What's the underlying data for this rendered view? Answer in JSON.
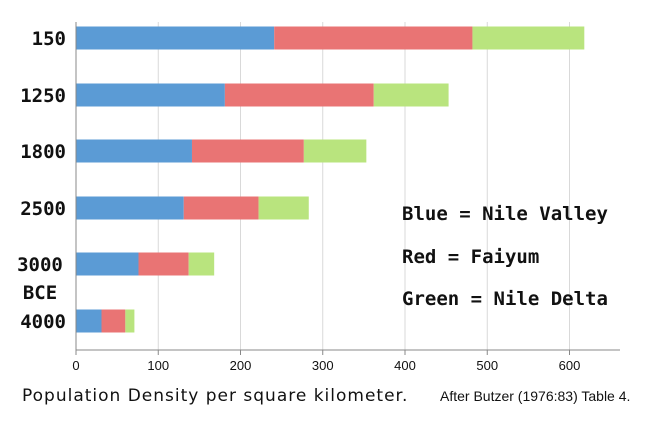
{
  "chart_data": {
    "type": "bar",
    "orientation": "horizontal",
    "stacked": true,
    "categories": [
      "150",
      "1250",
      "1800",
      "2500",
      "3000 BCE",
      "4000"
    ],
    "series": [
      {
        "name": "Nile Valley",
        "color": "#5b9bd5",
        "values": [
          241,
          181,
          141,
          131,
          76,
          31
        ]
      },
      {
        "name": "Faiyum",
        "color": "#e97474",
        "values": [
          241,
          181,
          136,
          91,
          61,
          29
        ]
      },
      {
        "name": "Nile Delta",
        "color": "#b9e47e",
        "values": [
          136,
          91,
          76,
          61,
          31,
          11
        ]
      }
    ],
    "xlim": [
      0,
      660
    ],
    "xticks": [
      0,
      100,
      200,
      300,
      400,
      500,
      600
    ],
    "xlabel": "Population Density per square kilometer.",
    "grid": true
  },
  "legend": [
    {
      "text": "Blue = Nile Valley"
    },
    {
      "text": "Red = Faiyum"
    },
    {
      "text": "Green = Nile Delta"
    }
  ],
  "source_note": "After Butzer (1976:83) Table 4."
}
